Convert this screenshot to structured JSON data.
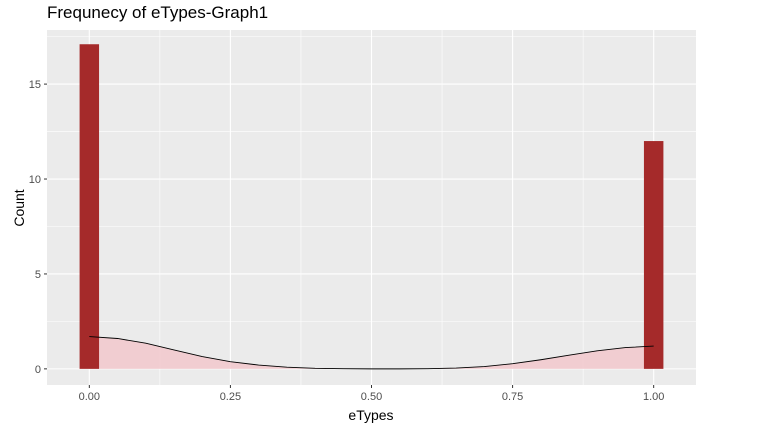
{
  "chart_data": {
    "type": "bar",
    "title": "Frequnecy of eTypes-Graph1",
    "xlabel": "eTypes",
    "ylabel": "Count",
    "xlim": [
      -0.075,
      1.075
    ],
    "ylim": [
      -0.85,
      17.85
    ],
    "x_ticks": [
      0.0,
      0.25,
      0.5,
      0.75,
      1.0
    ],
    "x_tick_labels": [
      "0.00",
      "0.25",
      "0.50",
      "0.75",
      "1.00"
    ],
    "y_ticks": [
      0,
      5,
      10,
      15
    ],
    "y_tick_labels": [
      "0",
      "5",
      "10",
      "15"
    ],
    "grid": true,
    "bars": [
      {
        "x": 0.0,
        "count": 17.1
      },
      {
        "x": 1.0,
        "count": 12.0
      }
    ],
    "bin_width": 0.0345,
    "density_overlay": {
      "x": [
        0.0,
        0.05,
        0.1,
        0.15,
        0.2,
        0.25,
        0.3,
        0.35,
        0.4,
        0.45,
        0.5,
        0.55,
        0.6,
        0.65,
        0.7,
        0.75,
        0.8,
        0.85,
        0.9,
        0.95,
        1.0
      ],
      "y": [
        1.7,
        1.6,
        1.35,
        1.0,
        0.65,
        0.38,
        0.2,
        0.09,
        0.03,
        0.01,
        0.0,
        0.0,
        0.01,
        0.04,
        0.12,
        0.27,
        0.48,
        0.72,
        0.95,
        1.12,
        1.2
      ]
    },
    "colors": {
      "bar_fill": "#a52a2a",
      "density_fill": "#f2c8cc",
      "density_line": "#000000",
      "panel_bg": "#ebebeb",
      "grid": "#ffffff"
    }
  }
}
